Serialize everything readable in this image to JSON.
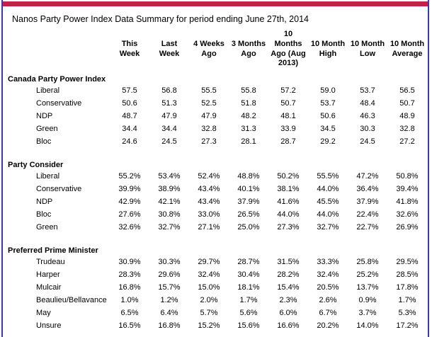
{
  "title": "Nanos Party Power Index Data Summary for period ending June 27th, 2014",
  "colors": {
    "top_bar": "#c32148",
    "frame_border": "#3c38b4",
    "text": "#000000"
  },
  "table": {
    "columns": [
      "This Week",
      "Last Week",
      "4 Weeks Ago",
      "3 Months Ago",
      "10 Months Ago (Aug 2013)",
      "10 Month High",
      "10 Month Low",
      "10 Month Average"
    ],
    "sections": [
      {
        "heading": "Canada Party Power Index",
        "rows": [
          {
            "label": "Liberal",
            "values": [
              "57.5",
              "56.8",
              "55.5",
              "55.8",
              "57.2",
              "59.0",
              "53.7",
              "56.5"
            ]
          },
          {
            "label": "Conservative",
            "values": [
              "50.6",
              "51.3",
              "52.5",
              "51.8",
              "50.7",
              "53.7",
              "48.4",
              "50.7"
            ]
          },
          {
            "label": "NDP",
            "values": [
              "48.7",
              "47.9",
              "47.9",
              "48.2",
              "48.1",
              "50.6",
              "46.3",
              "48.9"
            ]
          },
          {
            "label": "Green",
            "values": [
              "34.4",
              "34.4",
              "32.8",
              "31.3",
              "33.9",
              "34.5",
              "30.3",
              "32.8"
            ]
          },
          {
            "label": "Bloc",
            "values": [
              "24.6",
              "24.5",
              "27.3",
              "28.1",
              "28.7",
              "29.2",
              "24.5",
              "27.2"
            ]
          }
        ]
      },
      {
        "heading": "Party Consider",
        "rows": [
          {
            "label": "Liberal",
            "values": [
              "55.2%",
              "53.4%",
              "52.4%",
              "48.8%",
              "50.2%",
              "55.5%",
              "47.2%",
              "50.8%"
            ]
          },
          {
            "label": "Conservative",
            "values": [
              "39.9%",
              "38.9%",
              "43.4%",
              "40.1%",
              "38.1%",
              "44.0%",
              "36.4%",
              "39.4%"
            ]
          },
          {
            "label": "NDP",
            "values": [
              "42.9%",
              "42.1%",
              "43.4%",
              "37.9%",
              "41.6%",
              "45.5%",
              "37.9%",
              "41.8%"
            ]
          },
          {
            "label": "Bloc",
            "values": [
              "27.6%",
              "30.8%",
              "33.0%",
              "26.5%",
              "44.0%",
              "44.0%",
              "22.4%",
              "32.6%"
            ]
          },
          {
            "label": "Green",
            "values": [
              "32.6%",
              "32.7%",
              "27.1%",
              "25.0%",
              "27.3%",
              "32.7%",
              "22.7%",
              "26.9%"
            ]
          }
        ]
      },
      {
        "heading": "Preferred Prime Minister",
        "rows": [
          {
            "label": "Trudeau",
            "values": [
              "30.9%",
              "30.3%",
              "29.7%",
              "28.7%",
              "31.5%",
              "33.3%",
              "25.8%",
              "29.5%"
            ]
          },
          {
            "label": "Harper",
            "values": [
              "28.3%",
              "29.6%",
              "32.4%",
              "30.4%",
              "28.2%",
              "32.4%",
              "25.2%",
              "28.5%"
            ]
          },
          {
            "label": "Mulcair",
            "values": [
              "16.8%",
              "15.7%",
              "15.0%",
              "18.1%",
              "15.4%",
              "20.5%",
              "13.7%",
              "17.8%"
            ]
          },
          {
            "label": "Beaulieu/Bellavance",
            "values": [
              "1.0%",
              "1.2%",
              "2.0%",
              "1.7%",
              "2.3%",
              "2.6%",
              "0.9%",
              "1.7%"
            ]
          },
          {
            "label": "May",
            "values": [
              "6.5%",
              "6.4%",
              "5.7%",
              "5.6%",
              "6.0%",
              "6.7%",
              "3.7%",
              "5.3%"
            ]
          },
          {
            "label": "Unsure",
            "values": [
              "16.5%",
              "16.8%",
              "15.2%",
              "15.6%",
              "16.6%",
              "20.2%",
              "14.0%",
              "17.2%"
            ]
          }
        ]
      }
    ]
  }
}
